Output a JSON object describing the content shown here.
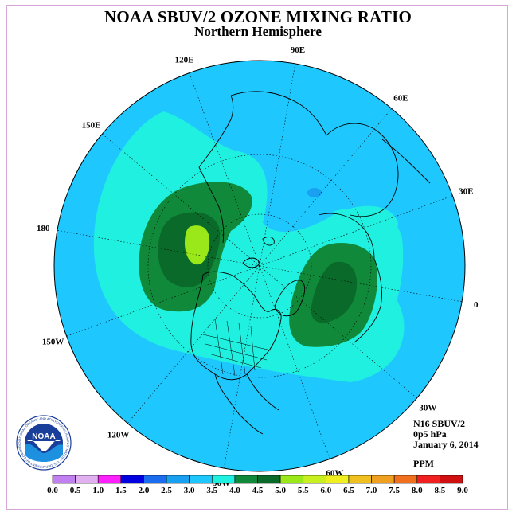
{
  "title": "NOAA SBUV/2 OZONE MIXING RATIO",
  "subtitle": "Northern Hemisphere",
  "info": {
    "satellite": "N16 SBUV/2",
    "level": "0p5 hPa",
    "date": "January 6, 2014",
    "units": "PPM"
  },
  "logo": {
    "text": "NOAA",
    "ring_text": "NATIONAL OCEANIC AND ATMOSPHERIC ADMINISTRATION · U.S. DEPARTMENT OF COMMERCE"
  },
  "longitude_labels": [
    {
      "text": "90E",
      "lon": 90
    },
    {
      "text": "60E",
      "lon": 60
    },
    {
      "text": "30E",
      "lon": 30
    },
    {
      "text": "0",
      "lon": 0
    },
    {
      "text": "30W",
      "lon": -30
    },
    {
      "text": "60W",
      "lon": -60
    },
    {
      "text": "90W",
      "lon": -90
    },
    {
      "text": "120W",
      "lon": -120
    },
    {
      "text": "150W",
      "lon": -150
    },
    {
      "text": "180",
      "lon": 180
    },
    {
      "text": "150E",
      "lon": 150
    },
    {
      "text": "120E",
      "lon": 120
    }
  ],
  "colorbar": {
    "ticks": [
      "0.0",
      "0.5",
      "1.0",
      "1.5",
      "2.0",
      "2.5",
      "3.0",
      "3.5",
      "4.0",
      "4.5",
      "5.0",
      "5.5",
      "6.0",
      "6.5",
      "7.0",
      "7.5",
      "8.0",
      "8.5",
      "9.0"
    ],
    "colors": [
      "#c080f0",
      "#e0b0f0",
      "#ff20ff",
      "#0000e0",
      "#1c6cf0",
      "#1aa0f0",
      "#1ec8ff",
      "#20f0e0",
      "#108a3a",
      "#0a6a2a",
      "#9be81a",
      "#c8f020",
      "#f0f020",
      "#f0c020",
      "#f0a020",
      "#f07020",
      "#f02020",
      "#d01010",
      "#8b5a3a"
    ]
  },
  "chart_data": {
    "type": "heatmap",
    "projection": "polar stereographic, north pole centered",
    "units": "PPM",
    "levels": [
      0.0,
      0.5,
      1.0,
      1.5,
      2.0,
      2.5,
      3.0,
      3.5,
      4.0,
      4.5,
      5.0,
      5.5,
      6.0,
      6.5,
      7.0,
      7.5,
      8.0,
      8.5,
      9.0
    ],
    "background_value_range": [
      3.0,
      3.5
    ],
    "features": [
      {
        "region": "North Pacific / eastern Siberia",
        "max_range": [
          5.5,
          6.0
        ]
      },
      {
        "region": "Atlantic / Europe",
        "max_range": [
          4.5,
          5.0
        ]
      },
      {
        "region": "near pole (Arctic Ocean)",
        "min_range": [
          2.5,
          3.0
        ]
      }
    ]
  }
}
